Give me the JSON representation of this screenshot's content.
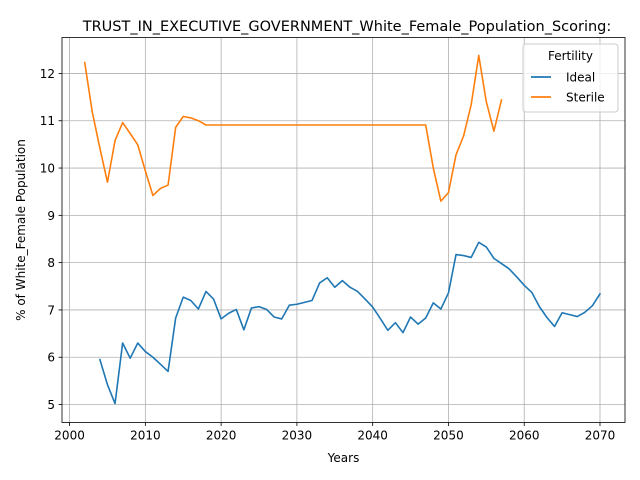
{
  "chart_data": {
    "type": "line",
    "title": "TRUST_IN_EXECUTIVE_GOVERNMENT_White_Female_Population_Scoring:",
    "xlabel": "Years",
    "ylabel": "% of White_Female Population",
    "xlim": [
      1999,
      2073.3
    ],
    "ylim": [
      4.62,
      12.76
    ],
    "xticks": [
      2000,
      2010,
      2020,
      2030,
      2040,
      2050,
      2060,
      2070
    ],
    "yticks": [
      5,
      6,
      7,
      8,
      9,
      10,
      11,
      12
    ],
    "grid": true,
    "legend": {
      "title": "Fertility",
      "position": "top-right"
    },
    "series": [
      {
        "name": "Ideal",
        "color": "#1f77b4",
        "points": [
          [
            2004,
            5.95
          ],
          [
            2005,
            5.42
          ],
          [
            2006,
            5.02
          ],
          [
            2007,
            6.3
          ],
          [
            2008,
            5.98
          ],
          [
            2009,
            6.3
          ],
          [
            2010,
            6.12
          ],
          [
            2011,
            6.0
          ],
          [
            2012,
            5.85
          ],
          [
            2013,
            5.7
          ],
          [
            2014,
            6.83
          ],
          [
            2015,
            7.27
          ],
          [
            2016,
            7.2
          ],
          [
            2017,
            7.02
          ],
          [
            2018,
            7.39
          ],
          [
            2019,
            7.23
          ],
          [
            2020,
            6.81
          ],
          [
            2021,
            6.93
          ],
          [
            2022,
            7.01
          ],
          [
            2023,
            6.58
          ],
          [
            2024,
            7.04
          ],
          [
            2025,
            7.07
          ],
          [
            2026,
            7.01
          ],
          [
            2027,
            6.85
          ],
          [
            2028,
            6.81
          ],
          [
            2029,
            7.1
          ],
          [
            2030,
            7.12
          ],
          [
            2031,
            7.16
          ],
          [
            2032,
            7.2
          ],
          [
            2033,
            7.57
          ],
          [
            2034,
            7.68
          ],
          [
            2035,
            7.48
          ],
          [
            2036,
            7.62
          ],
          [
            2037,
            7.48
          ],
          [
            2038,
            7.39
          ],
          [
            2039,
            7.23
          ],
          [
            2040,
            7.06
          ],
          [
            2041,
            6.82
          ],
          [
            2042,
            6.57
          ],
          [
            2043,
            6.73
          ],
          [
            2044,
            6.52
          ],
          [
            2045,
            6.85
          ],
          [
            2046,
            6.7
          ],
          [
            2047,
            6.83
          ],
          [
            2048,
            7.15
          ],
          [
            2049,
            7.02
          ],
          [
            2050,
            7.36
          ],
          [
            2051,
            8.17
          ],
          [
            2052,
            8.15
          ],
          [
            2053,
            8.11
          ],
          [
            2054,
            8.43
          ],
          [
            2055,
            8.33
          ],
          [
            2056,
            8.09
          ],
          [
            2057,
            7.98
          ],
          [
            2058,
            7.87
          ],
          [
            2059,
            7.7
          ],
          [
            2060,
            7.52
          ],
          [
            2061,
            7.37
          ],
          [
            2062,
            7.07
          ],
          [
            2063,
            6.84
          ],
          [
            2064,
            6.65
          ],
          [
            2065,
            6.94
          ],
          [
            2066,
            6.9
          ],
          [
            2067,
            6.86
          ],
          [
            2068,
            6.95
          ],
          [
            2069,
            7.09
          ],
          [
            2070,
            7.34
          ]
        ]
      },
      {
        "name": "Sterile",
        "color": "#ff7f0e",
        "points": [
          [
            2002,
            12.23
          ],
          [
            2003,
            11.18
          ],
          [
            2004,
            10.42
          ],
          [
            2005,
            9.7
          ],
          [
            2006,
            10.58
          ],
          [
            2007,
            10.96
          ],
          [
            2008,
            10.73
          ],
          [
            2009,
            10.49
          ],
          [
            2010,
            9.94
          ],
          [
            2011,
            9.42
          ],
          [
            2012,
            9.57
          ],
          [
            2013,
            9.64
          ],
          [
            2014,
            10.86
          ],
          [
            2015,
            11.09
          ],
          [
            2016,
            11.06
          ],
          [
            2017,
            11.0
          ],
          [
            2018,
            10.91
          ],
          [
            2019,
            10.91
          ],
          [
            2020,
            10.91
          ],
          [
            2025,
            10.91
          ],
          [
            2030,
            10.91
          ],
          [
            2035,
            10.91
          ],
          [
            2040,
            10.91
          ],
          [
            2045,
            10.91
          ],
          [
            2047,
            10.91
          ],
          [
            2048,
            10.0
          ],
          [
            2049,
            9.3
          ],
          [
            2050,
            9.48
          ],
          [
            2051,
            10.28
          ],
          [
            2052,
            10.68
          ],
          [
            2053,
            11.34
          ],
          [
            2054,
            12.38
          ],
          [
            2055,
            11.4
          ],
          [
            2056,
            10.78
          ],
          [
            2057,
            11.44
          ]
        ]
      }
    ]
  }
}
